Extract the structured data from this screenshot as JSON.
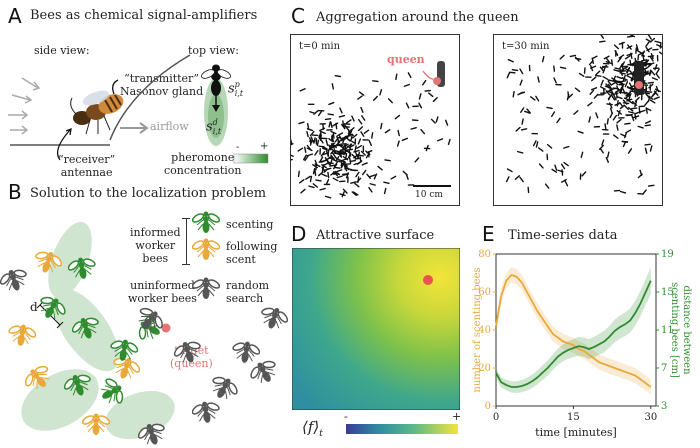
{
  "panelA": {
    "letter": "A",
    "title": "Bees as chemical signal-amplifiers",
    "side_view": "side view:",
    "top_view": "top view:",
    "transmitter_l1": "“transmitter”",
    "transmitter_l2": "Nasonov gland",
    "receiver_l1": "“receiver”",
    "receiver_l2": "antennae",
    "airflow": "airflow",
    "s_top": "s",
    "s_top_sup": "p",
    "s_top_sub": "i,t",
    "s_bot": "s",
    "s_bot_sup": "d",
    "s_bot_sub": "i,t",
    "conc_l1": "pheromone",
    "conc_l2": "concentration",
    "minus": "-",
    "plus": "+"
  },
  "panelB": {
    "letter": "B",
    "title": "Solution to the localization problem",
    "informed_l1": "informed",
    "informed_l2": "worker",
    "informed_l3": "bees",
    "scenting": "scenting",
    "following_l1": "following",
    "following_l2": "scent",
    "uninformed_l1": "uninformed",
    "uninformed_l2": "worker bees",
    "random_l1": "random",
    "random_l2": "search",
    "d_label": "d",
    "target_l1": "target",
    "target_l2": "(queen)"
  },
  "panelC": {
    "letter": "C",
    "title": "Aggregation around the queen",
    "t0": "t=0 min",
    "t30": "t=30 min",
    "queen": "queen",
    "scale": "10 cm"
  },
  "panelD": {
    "letter": "D",
    "title": "Attractive surface",
    "cbar_minus": "-",
    "cbar_plus": "+",
    "f_label": "⟨f⟩",
    "f_sub": "t"
  },
  "panelE": {
    "letter": "E",
    "title": "Time-series data",
    "colors": {
      "orange": "#e8a93a",
      "green": "#2e8b2e"
    },
    "chart_data": {
      "type": "line",
      "xlabel": "time [minutes]",
      "ylabel_left": "number of scenting bees",
      "ylabel_right_l1": "distance between",
      "ylabel_right_l2": "scenting bees [cm]",
      "xlim": [
        0,
        31
      ],
      "xticks": [
        "0",
        "15",
        "30"
      ],
      "ylim_left": [
        0,
        80
      ],
      "yticks_left": [
        "0",
        "20",
        "40",
        "60",
        "80"
      ],
      "ylim_right": [
        3,
        19
      ],
      "yticks_right": [
        "3",
        "7",
        "11",
        "15",
        "19"
      ],
      "series": [
        {
          "axis": "left",
          "x": [
            0,
            1,
            2,
            3,
            4,
            5,
            6,
            7,
            8,
            9,
            10,
            11,
            12,
            13,
            14,
            15,
            16,
            17,
            18,
            19,
            20,
            21,
            22,
            23,
            24,
            25,
            26,
            27,
            28,
            29,
            30
          ],
          "values": [
            42,
            58,
            66,
            69,
            68,
            65,
            60,
            55,
            50,
            46,
            42,
            38,
            36,
            34,
            33,
            32,
            30,
            29,
            27,
            25,
            23,
            22,
            21,
            20,
            19,
            18,
            17,
            16,
            14,
            12,
            10
          ]
        },
        {
          "axis": "right",
          "x": [
            0,
            1,
            2,
            3,
            4,
            5,
            6,
            7,
            8,
            9,
            10,
            11,
            12,
            13,
            14,
            15,
            16,
            17,
            18,
            19,
            20,
            21,
            22,
            23,
            24,
            25,
            26,
            27,
            28,
            29,
            30
          ],
          "values": [
            6.5,
            5.5,
            5.2,
            5.0,
            5.0,
            5.1,
            5.3,
            5.6,
            6.0,
            6.5,
            7.0,
            7.6,
            8.2,
            8.6,
            8.9,
            9.1,
            9.3,
            9.2,
            9.0,
            9.2,
            9.5,
            9.8,
            10.3,
            10.9,
            11.3,
            11.6,
            12.0,
            12.8,
            13.8,
            15.0,
            16.2
          ]
        }
      ]
    }
  }
}
